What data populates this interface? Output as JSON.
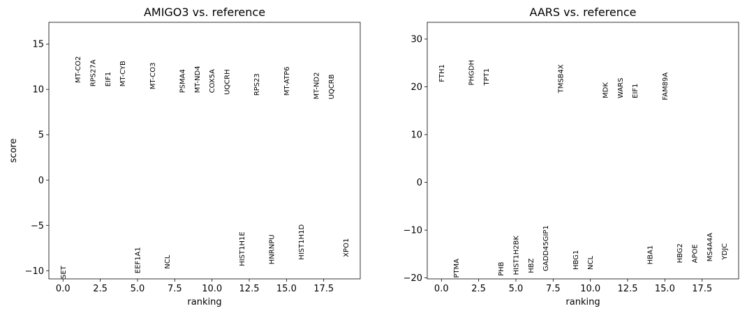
{
  "chart_data": [
    {
      "type": "scatter",
      "title": "AMIGO3 vs. reference",
      "xlabel": "ranking",
      "ylabel": "score",
      "xlim": [
        -0.95,
        19.95
      ],
      "ylim": [
        -10.9,
        17.4
      ],
      "xticks": [
        0.0,
        2.5,
        5.0,
        7.5,
        10.0,
        12.5,
        15.0,
        17.5
      ],
      "xtick_labels": [
        "0.0",
        "2.5",
        "5.0",
        "7.5",
        "10.0",
        "12.5",
        "15.0",
        "17.5"
      ],
      "yticks": [
        -10,
        -5,
        0,
        5,
        10,
        15
      ],
      "ytick_labels": [
        "−10",
        "−5",
        "0",
        "5",
        "10",
        "15"
      ],
      "genes": [
        {
          "name": "MT-CO2",
          "rank": 1,
          "score": 10.7
        },
        {
          "name": "RPS27A",
          "rank": 2,
          "score": 10.3
        },
        {
          "name": "EIF1",
          "rank": 3,
          "score": 10.3
        },
        {
          "name": "MT-CYB",
          "rank": 4,
          "score": 10.3
        },
        {
          "name": "MT-CO3",
          "rank": 6,
          "score": 10.0
        },
        {
          "name": "PSMA4",
          "rank": 8,
          "score": 9.6
        },
        {
          "name": "MT-ND4",
          "rank": 9,
          "score": 9.6
        },
        {
          "name": "COX5A",
          "rank": 10,
          "score": 9.6
        },
        {
          "name": "UQCRH",
          "rank": 11,
          "score": 9.4
        },
        {
          "name": "RPS23",
          "rank": 13,
          "score": 9.3
        },
        {
          "name": "MT-ATP6",
          "rank": 15,
          "score": 9.3
        },
        {
          "name": "MT-ND2",
          "rank": 17,
          "score": 8.9
        },
        {
          "name": "UQCRB",
          "rank": 18,
          "score": 8.9
        },
        {
          "name": "SET",
          "rank": 0,
          "score": -10.9
        },
        {
          "name": "EEF1A1",
          "rank": 5,
          "score": -10.3
        },
        {
          "name": "NCL",
          "rank": 7,
          "score": -9.8
        },
        {
          "name": "HIST1H1E",
          "rank": 12,
          "score": -9.5
        },
        {
          "name": "HNRNPU",
          "rank": 14,
          "score": -9.3
        },
        {
          "name": "HIST1H1D",
          "rank": 16,
          "score": -8.8
        },
        {
          "name": "XPO1",
          "rank": 19,
          "score": -8.5
        }
      ]
    },
    {
      "type": "scatter",
      "title": "AARS vs. reference",
      "xlabel": "ranking",
      "ylabel": "",
      "xlim": [
        -0.95,
        19.95
      ],
      "ylim": [
        -20.2,
        33.5
      ],
      "xticks": [
        0.0,
        2.5,
        5.0,
        7.5,
        10.0,
        12.5,
        15.0,
        17.5
      ],
      "xtick_labels": [
        "0.0",
        "2.5",
        "5.0",
        "7.5",
        "10.0",
        "12.5",
        "15.0",
        "17.5"
      ],
      "yticks": [
        -20,
        -10,
        0,
        10,
        20,
        30
      ],
      "ytick_labels": [
        "−20",
        "−10",
        "0",
        "10",
        "20",
        "30"
      ],
      "genes": [
        {
          "name": "FTH1",
          "rank": 0,
          "score": 21.0
        },
        {
          "name": "PHGDH",
          "rank": 2,
          "score": 20.3
        },
        {
          "name": "TPT1",
          "rank": 3,
          "score": 20.3
        },
        {
          "name": "TMSB4X",
          "rank": 8,
          "score": 18.7
        },
        {
          "name": "MDK",
          "rank": 11,
          "score": 17.6
        },
        {
          "name": "WARS",
          "rank": 12,
          "score": 17.6
        },
        {
          "name": "EIF1",
          "rank": 13,
          "score": 17.6
        },
        {
          "name": "FAM89A",
          "rank": 15,
          "score": 17.2
        },
        {
          "name": "PTMA",
          "rank": 1,
          "score": -20.0
        },
        {
          "name": "PHB",
          "rank": 4,
          "score": -19.6
        },
        {
          "name": "HIST1H2BK",
          "rank": 5,
          "score": -19.4
        },
        {
          "name": "HBZ",
          "rank": 6,
          "score": -19.0
        },
        {
          "name": "GADD45GIP1",
          "rank": 7,
          "score": -18.6
        },
        {
          "name": "HBG1",
          "rank": 9,
          "score": -18.3
        },
        {
          "name": "NCL",
          "rank": 10,
          "score": -18.3
        },
        {
          "name": "HBA1",
          "rank": 14,
          "score": -17.2
        },
        {
          "name": "HBG2",
          "rank": 16,
          "score": -16.9
        },
        {
          "name": "APOE",
          "rank": 17,
          "score": -16.9
        },
        {
          "name": "MS4A4A",
          "rank": 18,
          "score": -16.6
        },
        {
          "name": "YDJC",
          "rank": 19,
          "score": -16.2
        }
      ]
    }
  ]
}
